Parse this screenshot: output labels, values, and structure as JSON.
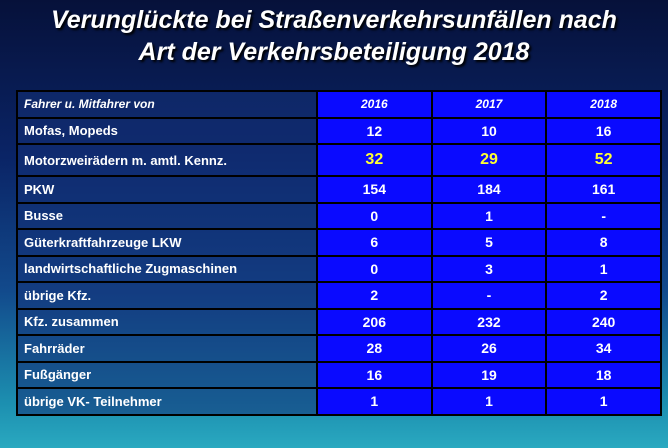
{
  "title": {
    "line1": "Verunglückte  bei Straßenverkehrsunfällen nach",
    "line2": "Art der Verkehrsbeteiligung 2018"
  },
  "colors": {
    "highlight": "#ffff33",
    "value_cells": "#0a0aff"
  },
  "table": {
    "header": [
      "Fahrer u. Mitfahrer  von",
      "2016",
      "2017",
      "2018"
    ],
    "rows": [
      {
        "label": "Mofas, Mopeds",
        "values": [
          "12",
          "10",
          "16"
        ]
      },
      {
        "label": "Motorzweirädern m. amtl. Kennz.",
        "values": [
          "32",
          "29",
          "52"
        ],
        "highlight": true
      },
      {
        "label": "PKW",
        "values": [
          "154",
          "184",
          "161"
        ]
      },
      {
        "label": "Busse",
        "values": [
          "0",
          "1",
          "-"
        ]
      },
      {
        "label": "Güterkraftfahrzeuge LKW",
        "values": [
          "6",
          "5",
          "8"
        ]
      },
      {
        "label": "landwirtschaftliche Zugmaschinen",
        "values": [
          "0",
          "3",
          "1"
        ]
      },
      {
        "label": "übrige Kfz.",
        "values": [
          "2",
          "-",
          "2"
        ]
      },
      {
        "label": "Kfz. zusammen",
        "values": [
          "206",
          "232",
          "240"
        ]
      },
      {
        "label": "Fahrräder",
        "values": [
          "28",
          "26",
          "34"
        ]
      },
      {
        "label": "Fußgänger",
        "values": [
          "16",
          "19",
          "18"
        ]
      },
      {
        "label": "übrige VK- Teilnehmer",
        "values": [
          "1",
          "1",
          "1"
        ]
      }
    ]
  }
}
